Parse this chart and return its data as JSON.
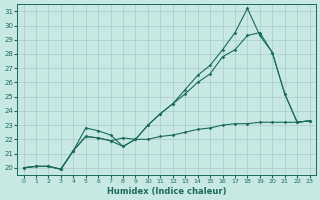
{
  "xlabel": "Humidex (Indice chaleur)",
  "bg_color": "#c8e8e4",
  "grid_color": "#a8cccc",
  "line_color": "#1a6b5a",
  "xlim": [
    -0.5,
    23.5
  ],
  "ylim": [
    19.5,
    31.5
  ],
  "xticks": [
    0,
    1,
    2,
    3,
    4,
    5,
    6,
    7,
    8,
    9,
    10,
    11,
    12,
    13,
    14,
    15,
    16,
    17,
    18,
    19,
    20,
    21,
    22,
    23
  ],
  "yticks": [
    20,
    21,
    22,
    23,
    24,
    25,
    26,
    27,
    28,
    29,
    30,
    31
  ],
  "line1_x": [
    0,
    1,
    2,
    3,
    4,
    5,
    6,
    7,
    8,
    9,
    10,
    11,
    12,
    13,
    14,
    15,
    16,
    17,
    18,
    19,
    20,
    21,
    22,
    23
  ],
  "line1_y": [
    20.0,
    20.1,
    20.1,
    19.9,
    21.2,
    22.2,
    22.1,
    21.9,
    22.1,
    22.0,
    22.0,
    22.2,
    22.3,
    22.5,
    22.7,
    22.8,
    23.0,
    23.1,
    23.1,
    23.2,
    23.2,
    23.2,
    23.2,
    23.3
  ],
  "line2_x": [
    0,
    1,
    2,
    3,
    4,
    5,
    6,
    7,
    8,
    9,
    10,
    11,
    12,
    13,
    14,
    15,
    16,
    17,
    18,
    19,
    20,
    21,
    22,
    23
  ],
  "line2_y": [
    20.0,
    20.1,
    20.1,
    19.9,
    21.2,
    22.8,
    22.6,
    22.3,
    21.5,
    22.0,
    23.0,
    23.8,
    24.5,
    25.2,
    26.0,
    26.6,
    27.8,
    28.3,
    29.3,
    29.5,
    28.1,
    25.2,
    23.2,
    23.3
  ],
  "line3_x": [
    0,
    1,
    2,
    3,
    4,
    5,
    6,
    7,
    8,
    9,
    10,
    11,
    12,
    13,
    14,
    15,
    16,
    17,
    18,
    19,
    20,
    21,
    22,
    23
  ],
  "line3_y": [
    20.0,
    20.1,
    20.1,
    19.9,
    21.2,
    22.2,
    22.1,
    21.9,
    21.5,
    22.0,
    23.0,
    23.8,
    24.5,
    25.5,
    26.5,
    27.2,
    28.3,
    29.5,
    31.2,
    29.3,
    28.1,
    25.2,
    23.2,
    23.3
  ]
}
